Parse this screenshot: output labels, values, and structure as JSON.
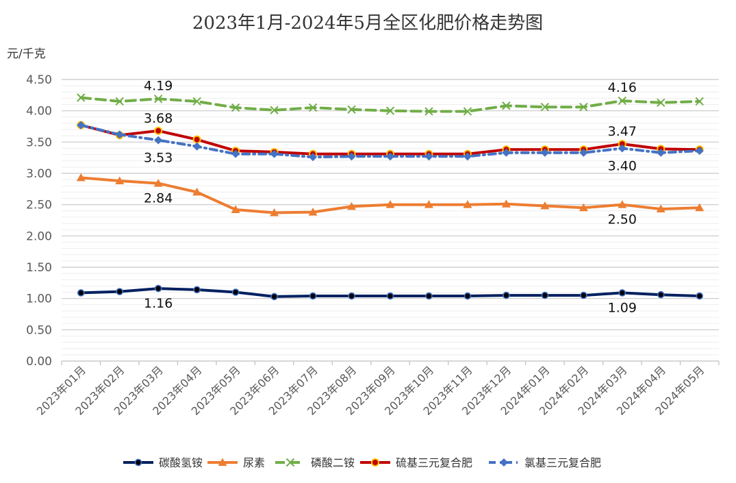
{
  "chart_data": {
    "type": "line",
    "title": "2023年1月-2024年5月全区化肥价格走势图",
    "ylabel": "元/千克",
    "xlabel": "",
    "ylim": [
      0,
      4.5
    ],
    "yticks": [
      "0.00",
      "0.50",
      "1.00",
      "1.50",
      "2.00",
      "2.50",
      "3.00",
      "3.50",
      "4.00",
      "4.50"
    ],
    "grid": true,
    "legend": "bottom",
    "categories": [
      "2023年01月",
      "2023年02月",
      "2023年03月",
      "2023年04月",
      "2023年05月",
      "2023年06月",
      "2023年07月",
      "2023年08月",
      "2023年09月",
      "2023年10月",
      "2023年11月",
      "2023年12月",
      "2024年01月",
      "2024年02月",
      "2024年03月",
      "2024年04月",
      "2024年05月"
    ],
    "series": [
      {
        "name": "碳酸氢铵",
        "color": "#002060",
        "marker": "circle",
        "dash": "solid",
        "values": [
          1.09,
          1.11,
          1.16,
          1.14,
          1.1,
          1.03,
          1.04,
          1.04,
          1.04,
          1.04,
          1.04,
          1.05,
          1.05,
          1.05,
          1.09,
          1.06,
          1.04
        ]
      },
      {
        "name": "尿素",
        "color": "#ED7D31",
        "marker": "triangle",
        "dash": "solid",
        "values": [
          2.93,
          2.88,
          2.84,
          2.7,
          2.42,
          2.37,
          2.38,
          2.47,
          2.5,
          2.5,
          2.5,
          2.51,
          2.48,
          2.45,
          2.5,
          2.43,
          2.45
        ]
      },
      {
        "name": "磷酸二铵",
        "color": "#70AD47",
        "marker": "x",
        "dash": "dashed",
        "values": [
          4.21,
          4.15,
          4.19,
          4.15,
          4.05,
          4.01,
          4.05,
          4.02,
          4.0,
          3.99,
          3.99,
          4.08,
          4.06,
          4.06,
          4.16,
          4.13,
          4.15
        ]
      },
      {
        "name": "硫基三元复合肥",
        "color": "#C00000",
        "marker": "circle-yellow",
        "dash": "solid",
        "values": [
          3.77,
          3.61,
          3.68,
          3.54,
          3.36,
          3.34,
          3.31,
          3.31,
          3.31,
          3.31,
          3.31,
          3.38,
          3.38,
          3.38,
          3.47,
          3.39,
          3.38
        ]
      },
      {
        "name": "氯基三元复合肥",
        "color": "#4472C4",
        "marker": "diamond",
        "dash": "dashdot",
        "values": [
          3.77,
          3.62,
          3.53,
          3.43,
          3.31,
          3.31,
          3.26,
          3.27,
          3.27,
          3.27,
          3.27,
          3.33,
          3.33,
          3.33,
          3.4,
          3.33,
          3.36
        ]
      }
    ],
    "annotations": [
      {
        "text": "4.19",
        "series": 2,
        "index": 2
      },
      {
        "text": "3.68",
        "series": 3,
        "index": 2
      },
      {
        "text": "3.53",
        "series": 4,
        "index": 2
      },
      {
        "text": "2.84",
        "series": 1,
        "index": 2
      },
      {
        "text": "1.16",
        "series": 0,
        "index": 2
      },
      {
        "text": "4.16",
        "series": 2,
        "index": 14
      },
      {
        "text": "3.47",
        "series": 3,
        "index": 14
      },
      {
        "text": "3.40",
        "series": 4,
        "index": 14
      },
      {
        "text": "2.50",
        "series": 1,
        "index": 14
      },
      {
        "text": "1.09",
        "series": 0,
        "index": 14
      }
    ]
  }
}
